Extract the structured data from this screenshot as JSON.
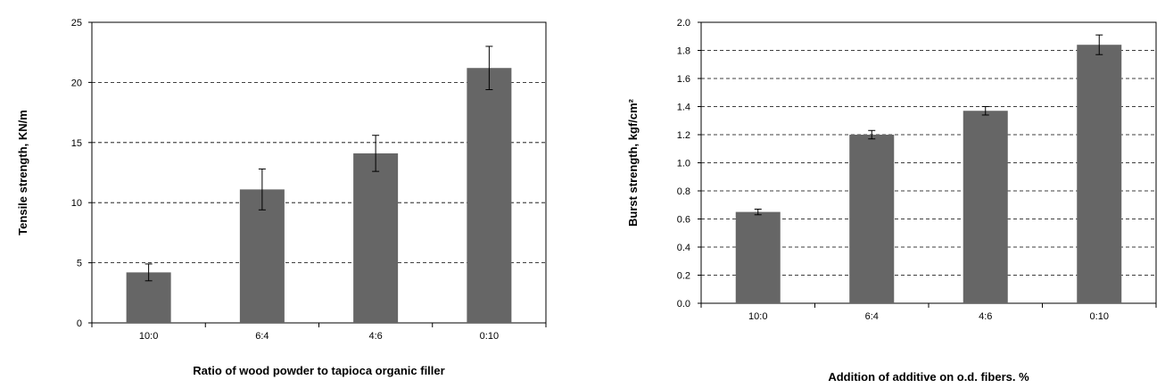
{
  "chart_data": [
    {
      "type": "bar",
      "title": "",
      "xlabel": "Ratio of wood powder to tapioca organic filler",
      "ylabel": "Tensile strength, KN/m",
      "categories": [
        "10:0",
        "6:4",
        "4:6",
        "0:10"
      ],
      "values": [
        4.2,
        11.1,
        14.1,
        21.2
      ],
      "errors": [
        0.7,
        1.7,
        1.5,
        1.8
      ],
      "ylim": [
        0,
        25
      ],
      "yticks": [
        "0",
        "5",
        "10",
        "15",
        "20",
        "25"
      ],
      "grid": "horizontal-dashed",
      "bar_color": "#666666"
    },
    {
      "type": "bar",
      "title": "",
      "xlabel": "Addition of additive on o.d. fibers. %",
      "ylabel": "Burst strength, kgf/cm²",
      "categories": [
        "10:0",
        "6:4",
        "4:6",
        "0:10"
      ],
      "values": [
        0.65,
        1.2,
        1.37,
        1.84
      ],
      "errors": [
        0.02,
        0.03,
        0.03,
        0.07
      ],
      "ylim": [
        0,
        2.0
      ],
      "yticks": [
        "0.0",
        "0.2",
        "0.4",
        "0.6",
        "0.8",
        "1.0",
        "1.2",
        "1.4",
        "1.6",
        "1.8",
        "2.0"
      ],
      "grid": "horizontal-dashed",
      "bar_color": "#666666"
    }
  ]
}
